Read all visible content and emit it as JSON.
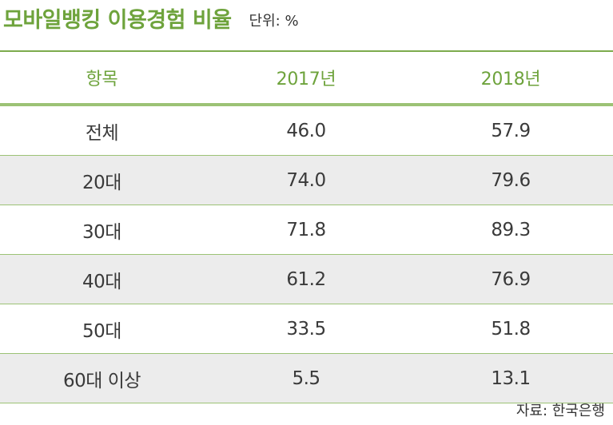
{
  "header": {
    "title": "모바일뱅킹 이용경험 비율",
    "unit": "단위: %"
  },
  "chart_data": {
    "type": "table",
    "columns": [
      "항목",
      "2017년",
      "2018년"
    ],
    "rows": [
      {
        "label": "전체",
        "values": [
          "46.0",
          "57.9"
        ]
      },
      {
        "label": "20대",
        "values": [
          "74.0",
          "79.6"
        ]
      },
      {
        "label": "30대",
        "values": [
          "71.8",
          "89.3"
        ]
      },
      {
        "label": "40대",
        "values": [
          "61.2",
          "76.9"
        ]
      },
      {
        "label": "50대",
        "values": [
          "33.5",
          "51.8"
        ]
      },
      {
        "label": "60대 이상",
        "values": [
          "5.5",
          "13.1"
        ]
      }
    ]
  },
  "footer": {
    "source": "자료: 한국은행"
  },
  "colors": {
    "accent": "#6ea33c",
    "rule": "#9cc275",
    "shade": "#ececec"
  }
}
